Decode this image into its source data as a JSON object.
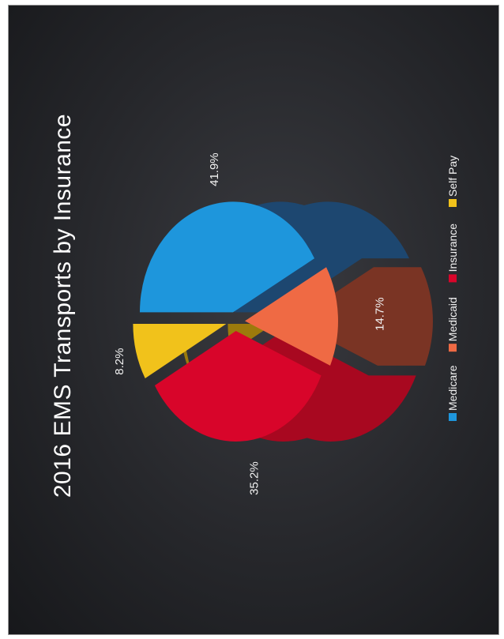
{
  "chart_data": {
    "type": "pie",
    "title": "2016 EMS Transports by Insurance",
    "categories": [
      "Medicare",
      "Medicaid",
      "Insurance",
      "Self Pay"
    ],
    "values": [
      41.9,
      14.7,
      35.2,
      8.2
    ],
    "labels": [
      "41.9%",
      "14.7%",
      "35.2%",
      "8.2%"
    ],
    "colors": [
      "#1e96dc",
      "#ef6a44",
      "#d8052a",
      "#f1c21b"
    ],
    "side_colors": [
      "#1d4770",
      "#7a3424",
      "#a80820",
      "#9c7a0c"
    ],
    "legend_position": "bottom",
    "orientation": "rotated 90 degrees counter-clockwise",
    "style": "3d exploded"
  }
}
